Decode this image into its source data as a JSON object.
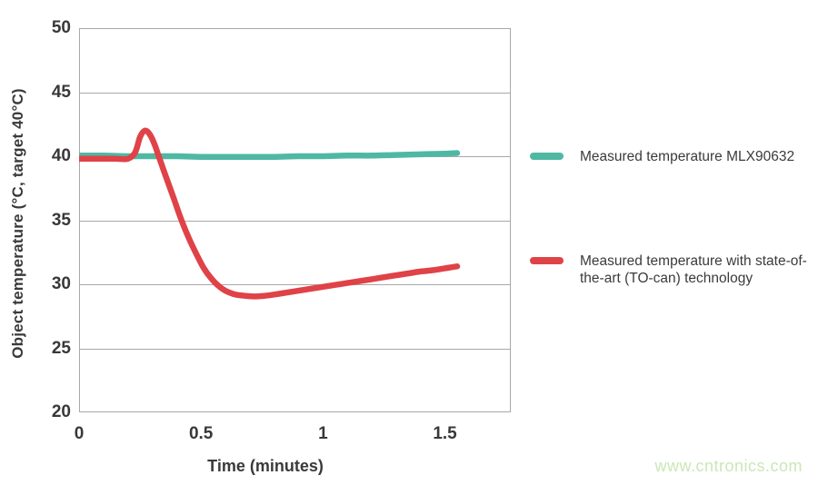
{
  "watermark": "www.cntronics.com",
  "colors": {
    "teal": "#4fb8a3",
    "red": "#df4247",
    "grid": "#a8a8a8",
    "axis_text": "#383838",
    "watermark": "#cbe7b6",
    "background": "#ffffff"
  },
  "chart_data": {
    "type": "line",
    "title": "",
    "xlabel": "Time (minutes)",
    "ylabel": "Object temperature (°C, target 40°C)",
    "xlim": [
      0,
      1.77
    ],
    "ylim": [
      20,
      50
    ],
    "xticks": [
      0,
      0.5,
      1,
      1.5
    ],
    "yticks": [
      50,
      45,
      40,
      35,
      30,
      25,
      20
    ],
    "grid": "horizontal-only, full border box",
    "legend_position": "right",
    "series": [
      {
        "name": "Measured temperature MLX90632",
        "color": "#4fb8a3",
        "x": [
          0,
          0.1,
          0.2,
          0.3,
          0.4,
          0.5,
          0.6,
          0.7,
          0.8,
          0.9,
          1.0,
          1.1,
          1.2,
          1.3,
          1.4,
          1.5,
          1.55
        ],
        "values": [
          40.05,
          40.05,
          40.0,
          40.0,
          40.0,
          39.95,
          39.95,
          39.95,
          39.95,
          40.0,
          40.0,
          40.05,
          40.05,
          40.1,
          40.15,
          40.2,
          40.25
        ]
      },
      {
        "name": "Measured temperature with state-of-the-art (TO-can) technology",
        "color": "#df4247",
        "x": [
          0,
          0.05,
          0.1,
          0.15,
          0.2,
          0.23,
          0.25,
          0.27,
          0.29,
          0.31,
          0.33,
          0.36,
          0.39,
          0.42,
          0.45,
          0.48,
          0.51,
          0.54,
          0.57,
          0.6,
          0.64,
          0.68,
          0.72,
          0.76,
          0.8,
          0.85,
          0.9,
          0.95,
          1.0,
          1.05,
          1.1,
          1.15,
          1.2,
          1.25,
          1.3,
          1.35,
          1.4,
          1.45,
          1.5,
          1.55
        ],
        "values": [
          39.8,
          39.8,
          39.8,
          39.8,
          39.8,
          40.3,
          41.5,
          42.0,
          41.7,
          40.9,
          39.8,
          38.2,
          36.6,
          35.0,
          33.6,
          32.4,
          31.3,
          30.5,
          29.9,
          29.5,
          29.2,
          29.1,
          29.05,
          29.1,
          29.2,
          29.35,
          29.5,
          29.65,
          29.8,
          29.95,
          30.1,
          30.25,
          30.4,
          30.55,
          30.7,
          30.85,
          31.0,
          31.1,
          31.25,
          31.4
        ]
      }
    ]
  },
  "legend": {
    "entries": [
      {
        "label": "Measured temperature MLX90632"
      },
      {
        "label": "Measured temperature with state-of-the-art (TO-can) technology"
      }
    ]
  }
}
